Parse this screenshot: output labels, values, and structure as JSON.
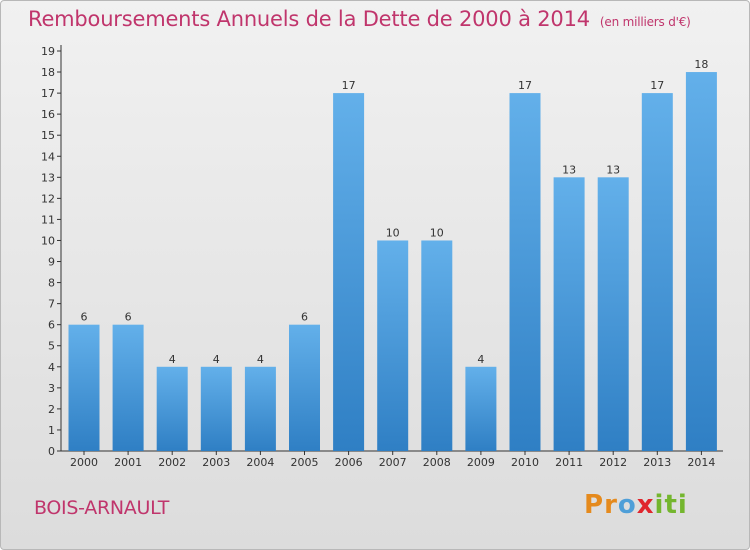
{
  "title": "Remboursements Annuels de la Dette de 2000 à 2014",
  "unit_note": "(en milliers d'€)",
  "place": "BOIS-ARNAULT",
  "logo": {
    "text": "Proxiti",
    "letters": [
      "P",
      "r",
      "o",
      "x",
      "i",
      "t",
      "i"
    ],
    "letter_colors": [
      "#e58a1d",
      "#e58a1d",
      "#4f9fd8",
      "#e0262d",
      "#74b62e",
      "#74b62e",
      "#74b62e"
    ]
  },
  "colors": {
    "title": "#c0356c",
    "bar_light": "#63b0ea",
    "bar_dark": "#2f7fc4",
    "axis": "#333333"
  },
  "chart_data": {
    "type": "bar",
    "title": "Remboursements Annuels de la Dette de 2000 à 2014",
    "xlabel": "",
    "ylabel": "",
    "categories": [
      "2000",
      "2001",
      "2002",
      "2003",
      "2004",
      "2005",
      "2006",
      "2007",
      "2008",
      "2009",
      "2010",
      "2011",
      "2012",
      "2013",
      "2014"
    ],
    "values": [
      6,
      6,
      4,
      4,
      4,
      6,
      17,
      10,
      10,
      4,
      17,
      13,
      13,
      17,
      18
    ],
    "ylim": [
      0,
      19
    ],
    "yticks": [
      0,
      1,
      2,
      3,
      4,
      5,
      6,
      7,
      8,
      9,
      10,
      11,
      12,
      13,
      14,
      15,
      16,
      17,
      18,
      19
    ],
    "grid": false,
    "data_labels": true
  }
}
